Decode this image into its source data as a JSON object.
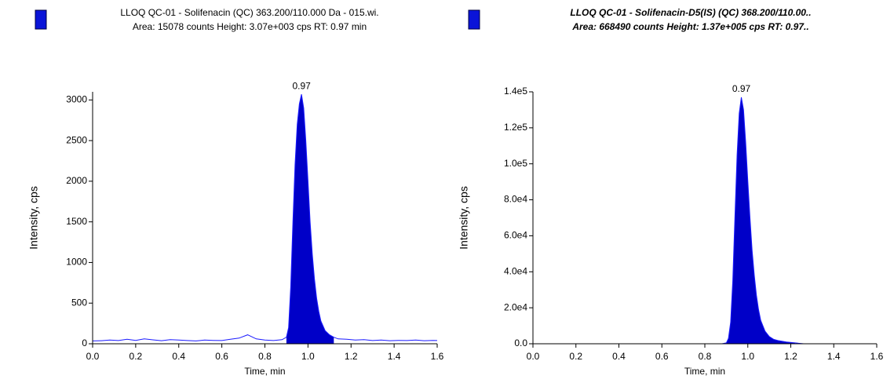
{
  "chart_data": [
    {
      "type": "line",
      "title": "LLOQ QC-01 - Solifenacin (QC) 363.200/110.000 Da - 015.wi.",
      "subtitle": "Area: 15078 counts  Height: 3.07e+003 cps  RT: 0.97 min",
      "xlabel": "Time, min",
      "ylabel": "Intensity, cps",
      "color": "#1a1aff",
      "fill_color": "#0000c8",
      "legend_color": "#0a14d8",
      "x": [
        0,
        0.04,
        0.08,
        0.12,
        0.16,
        0.2,
        0.24,
        0.28,
        0.32,
        0.36,
        0.4,
        0.44,
        0.48,
        0.52,
        0.56,
        0.6,
        0.64,
        0.68,
        0.72,
        0.76,
        0.8,
        0.84,
        0.88,
        0.9,
        0.91,
        0.92,
        0.93,
        0.94,
        0.95,
        0.96,
        0.97,
        0.98,
        0.99,
        1.0,
        1.01,
        1.02,
        1.03,
        1.04,
        1.05,
        1.06,
        1.08,
        1.1,
        1.12,
        1.14,
        1.18,
        1.22,
        1.26,
        1.3,
        1.34,
        1.38,
        1.42,
        1.46,
        1.5,
        1.54,
        1.58,
        1.6
      ],
      "values": [
        35,
        38,
        45,
        40,
        55,
        42,
        60,
        48,
        38,
        50,
        45,
        40,
        35,
        45,
        42,
        40,
        55,
        70,
        110,
        60,
        45,
        40,
        50,
        80,
        200,
        700,
        1500,
        2200,
        2700,
        2950,
        3070,
        2900,
        2500,
        2000,
        1500,
        1100,
        800,
        560,
        400,
        280,
        160,
        110,
        80,
        60,
        55,
        45,
        50,
        40,
        45,
        38,
        42,
        40,
        45,
        38,
        42,
        40
      ],
      "integration_x": [
        0.9,
        1.12
      ],
      "annotations": [
        {
          "x": 0.97,
          "y": 3070,
          "text": "0.97"
        }
      ],
      "xlim": [
        0,
        1.6
      ],
      "xticks": [
        {
          "value": 0,
          "label": "0.0"
        },
        0.2,
        0.4,
        0.6,
        0.8,
        {
          "value": 1,
          "label": "1.0"
        },
        1.2,
        1.4,
        1.6
      ],
      "ylim": [
        0,
        3100
      ],
      "yticks": [
        0,
        500,
        1000,
        1500,
        2000,
        2500,
        3000
      ]
    },
    {
      "type": "line",
      "title": "LLOQ QC-01 - Solifenacin-D5(IS) (QC) 368.200/110.00..",
      "subtitle": "Area: 668490 counts  Height: 1.37e+005 cps  RT: 0.97..",
      "xlabel": "Time, min",
      "ylabel": "Intensity, cps",
      "color": "#1a1aff",
      "fill_color": "#0000c8",
      "legend_color": "#0a14d8",
      "x": [
        0,
        0.04,
        0.08,
        0.12,
        0.16,
        0.2,
        0.24,
        0.28,
        0.32,
        0.36,
        0.4,
        0.44,
        0.48,
        0.52,
        0.56,
        0.6,
        0.64,
        0.68,
        0.72,
        0.76,
        0.8,
        0.84,
        0.88,
        0.9,
        0.91,
        0.92,
        0.93,
        0.94,
        0.95,
        0.96,
        0.97,
        0.98,
        0.99,
        1.0,
        1.01,
        1.02,
        1.03,
        1.04,
        1.05,
        1.06,
        1.08,
        1.1,
        1.12,
        1.14,
        1.18,
        1.22,
        1.26,
        1.3,
        1.34,
        1.38,
        1.42,
        1.46,
        1.5,
        1.54,
        1.58,
        1.6
      ],
      "values": [
        0,
        0,
        0,
        0,
        0,
        0,
        0,
        0,
        0,
        0,
        0,
        0,
        0,
        0,
        0,
        0,
        0,
        0,
        0,
        0,
        0,
        0,
        0,
        500,
        3000,
        12000,
        35000,
        70000,
        105000,
        128000,
        137000,
        130000,
        112000,
        90000,
        70000,
        52000,
        38000,
        27000,
        19000,
        13000,
        7000,
        4000,
        2500,
        1800,
        1000,
        500,
        0,
        0,
        0,
        0,
        0,
        0,
        0,
        0,
        0,
        0
      ],
      "integration_x": [
        0.9,
        1.22
      ],
      "annotations": [
        {
          "x": 0.97,
          "y": 137000,
          "text": "0.97"
        }
      ],
      "xlim": [
        0,
        1.6
      ],
      "xticks": [
        {
          "value": 0,
          "label": "0.0"
        },
        0.2,
        0.4,
        0.6,
        0.8,
        {
          "value": 1,
          "label": "1.0"
        },
        1.2,
        1.4,
        1.6
      ],
      "ylim": [
        0,
        140000
      ],
      "yticks": [
        {
          "value": 0,
          "label": "0.0"
        },
        {
          "value": 20000,
          "label": "2.0e4"
        },
        {
          "value": 40000,
          "label": "4.0e4"
        },
        {
          "value": 60000,
          "label": "6.0e4"
        },
        {
          "value": 80000,
          "label": "8.0e4"
        },
        {
          "value": 100000,
          "label": "1.0e5"
        },
        {
          "value": 120000,
          "label": "1.2e5"
        },
        {
          "value": 140000,
          "label": "1.4e5"
        }
      ]
    }
  ]
}
